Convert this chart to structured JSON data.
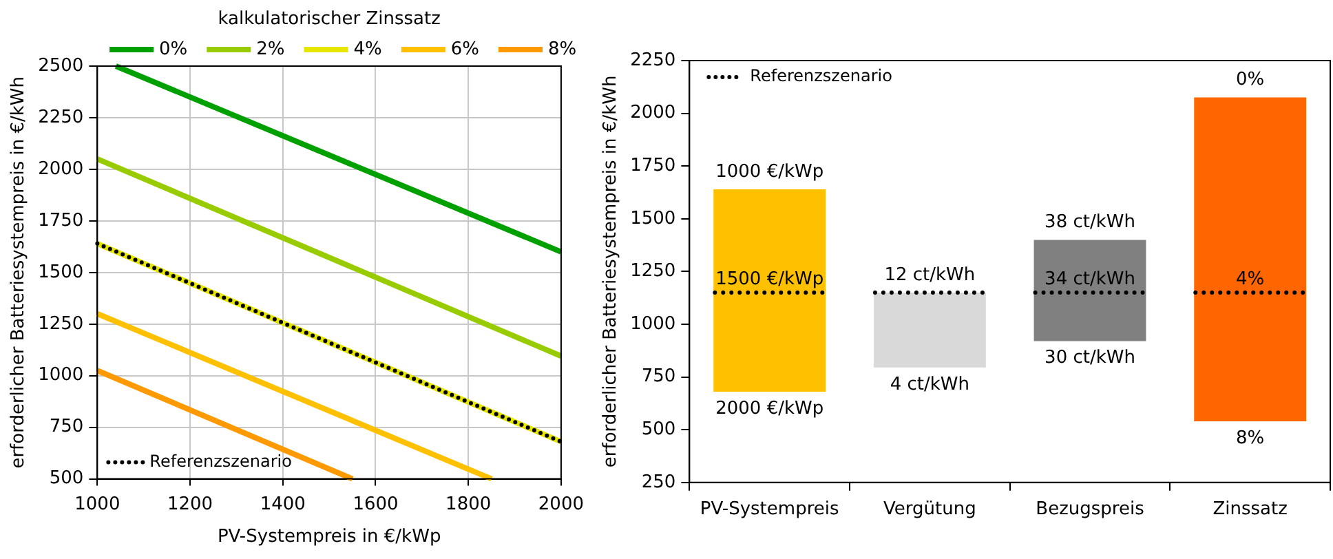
{
  "chart_data": [
    {
      "type": "line",
      "xlabel": "PV-Systempreis in €/kWp",
      "ylabel": "erforderlicher Batteriesystempreis in €/kWh",
      "legend_title": "kalkulatorischer Zinssatz",
      "legend": "top",
      "grid": true,
      "marker": "none",
      "xlim": [
        1000,
        2000
      ],
      "xticks": [
        1000,
        1200,
        1400,
        1600,
        1800,
        2000
      ],
      "ylim": [
        500,
        2500
      ],
      "yticks": [
        500,
        750,
        1000,
        1250,
        1500,
        1750,
        2000,
        2250,
        2500
      ],
      "series": [
        {
          "name": "0%",
          "color": "#00a000",
          "x": [
            1040,
            2000
          ],
          "values": [
            2500,
            1600
          ]
        },
        {
          "name": "2%",
          "color": "#99cc00",
          "x": [
            1000,
            2000
          ],
          "values": [
            2050,
            1095
          ]
        },
        {
          "name": "4%",
          "color": "#e6e600",
          "x": [
            1000,
            2000
          ],
          "values": [
            1640,
            680
          ]
        },
        {
          "name": "6%",
          "color": "#ffc000",
          "x": [
            1000,
            1850
          ],
          "values": [
            1300,
            500
          ]
        },
        {
          "name": "8%",
          "color": "#ff9900",
          "x": [
            1000,
            1550
          ],
          "values": [
            1025,
            500
          ]
        },
        {
          "name": "Referenzszenario",
          "color": "#000000",
          "line_style": "dotted",
          "x": [
            1000,
            2000
          ],
          "values": [
            1640,
            680
          ]
        }
      ]
    },
    {
      "type": "bar",
      "ylabel": "erforderlicher Batteriesystempreis in €/kWh",
      "legend": "top left",
      "grid": false,
      "categories": [
        "PV-Systempreis",
        "Vergütung",
        "Bezugspreis",
        "Zinssatz"
      ],
      "base": [
        680,
        795,
        920,
        540
      ],
      "values": [
        960,
        355,
        480,
        1535
      ],
      "colors": [
        "#ffc000",
        "#d9d9d9",
        "#808080",
        "#ff6600"
      ],
      "ylim": [
        250,
        2250
      ],
      "yticks": [
        250,
        500,
        750,
        1000,
        1250,
        1500,
        1750,
        2000,
        2250
      ],
      "ref_lines": [
        {
          "axis": "y",
          "value": 1150,
          "label": "Referenzszenario",
          "color": "#000000",
          "line_style": "dotted"
        }
      ],
      "annotations": [
        {
          "text": "1000 €/kWp",
          "x": "PV-Systempreis",
          "y": 1640
        },
        {
          "text": "1500 €/kWp",
          "x": "PV-Systempreis",
          "y": 1150
        },
        {
          "text": "2000 €/kWp",
          "x": "PV-Systempreis",
          "y": 680
        },
        {
          "text": "12 ct/kWh",
          "x": "Vergütung",
          "y": 1150
        },
        {
          "text": "4 ct/kWh",
          "x": "Vergütung",
          "y": 795
        },
        {
          "text": "38 ct/kWh",
          "x": "Bezugspreis",
          "y": 1400
        },
        {
          "text": "34 ct/kWh",
          "x": "Bezugspreis",
          "y": 1150
        },
        {
          "text": "30 ct/kWh",
          "x": "Bezugspreis",
          "y": 920
        },
        {
          "text": "0%",
          "x": "Zinssatz",
          "y": 2075
        },
        {
          "text": "4%",
          "x": "Zinssatz",
          "y": 1150
        },
        {
          "text": "8%",
          "x": "Zinssatz",
          "y": 540
        }
      ]
    }
  ]
}
